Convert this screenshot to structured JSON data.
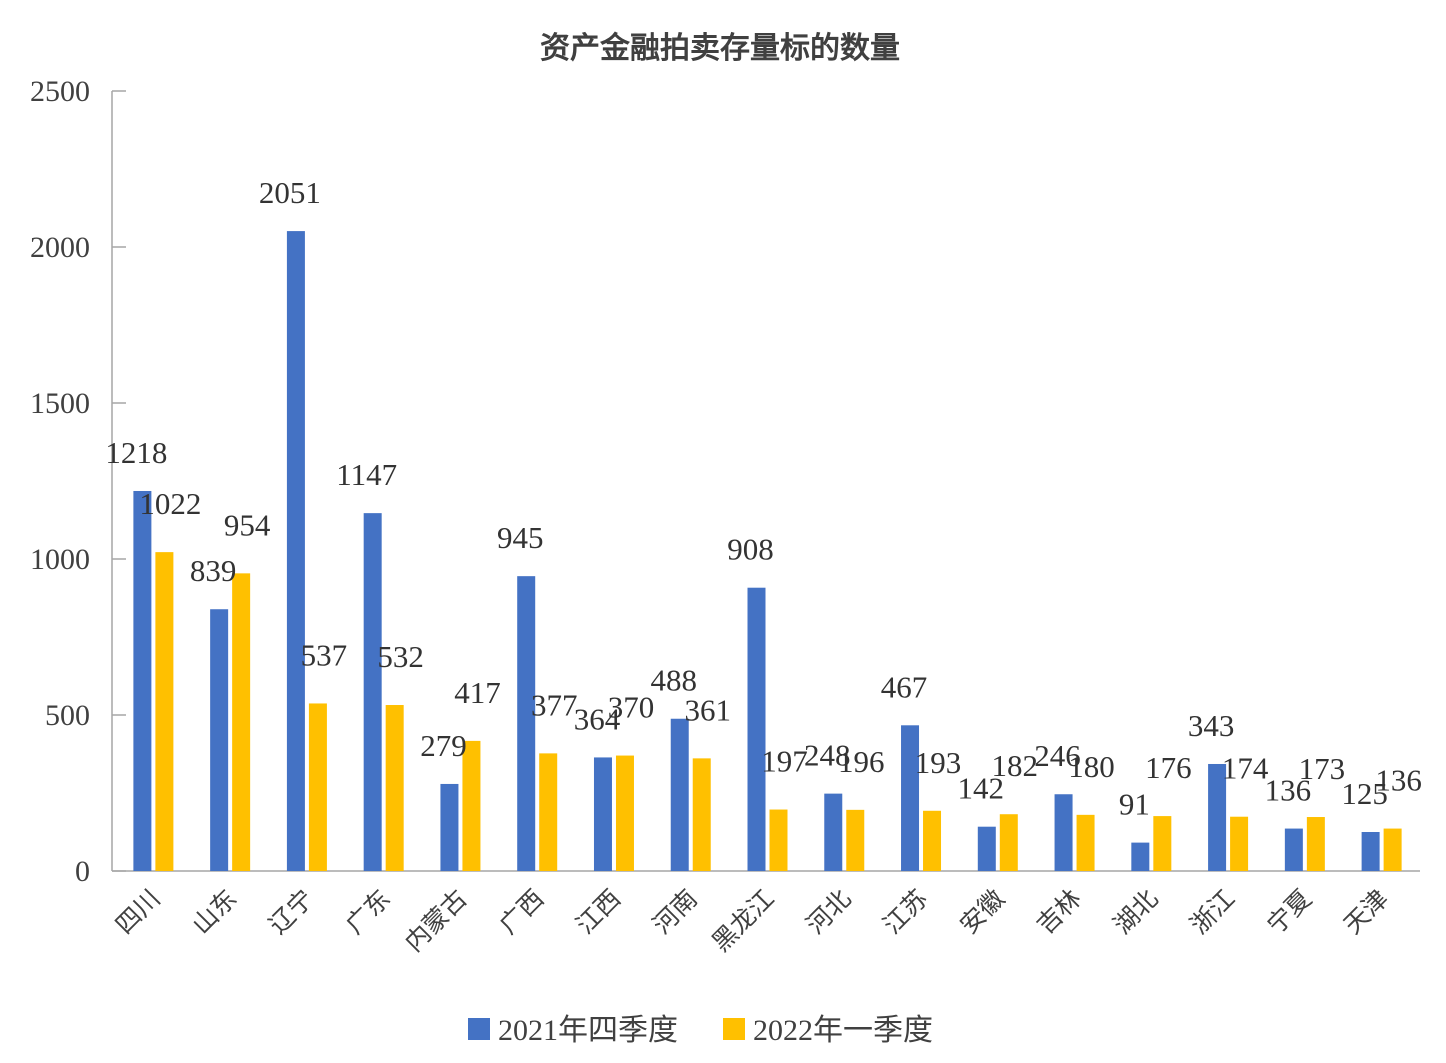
{
  "chart_data": {
    "type": "bar",
    "title": "资产金融拍卖存量标的数量",
    "categories": [
      "四川",
      "山东",
      "辽宁",
      "广东",
      "内蒙古",
      "广西",
      "江西",
      "河南",
      "黑龙江",
      "河北",
      "江苏",
      "安徽",
      "吉林",
      "湖北",
      "浙江",
      "宁夏",
      "天津"
    ],
    "series": [
      {
        "name": "2021年四季度",
        "color": "#4472C4",
        "values": [
          1218,
          839,
          2051,
          1147,
          279,
          945,
          364,
          488,
          908,
          248,
          467,
          142,
          246,
          91,
          343,
          136,
          125
        ]
      },
      {
        "name": "2022年一季度",
        "color": "#FFC000",
        "values": [
          1022,
          954,
          537,
          532,
          417,
          377,
          370,
          361,
          197,
          196,
          193,
          182,
          180,
          176,
          174,
          173,
          136
        ]
      }
    ],
    "ylim": [
      0,
      2500
    ],
    "yticks": [
      0,
      500,
      1000,
      1500,
      2000,
      2500
    ],
    "grid": false,
    "legend_position": "bottom",
    "xlabel": "",
    "ylabel": ""
  }
}
